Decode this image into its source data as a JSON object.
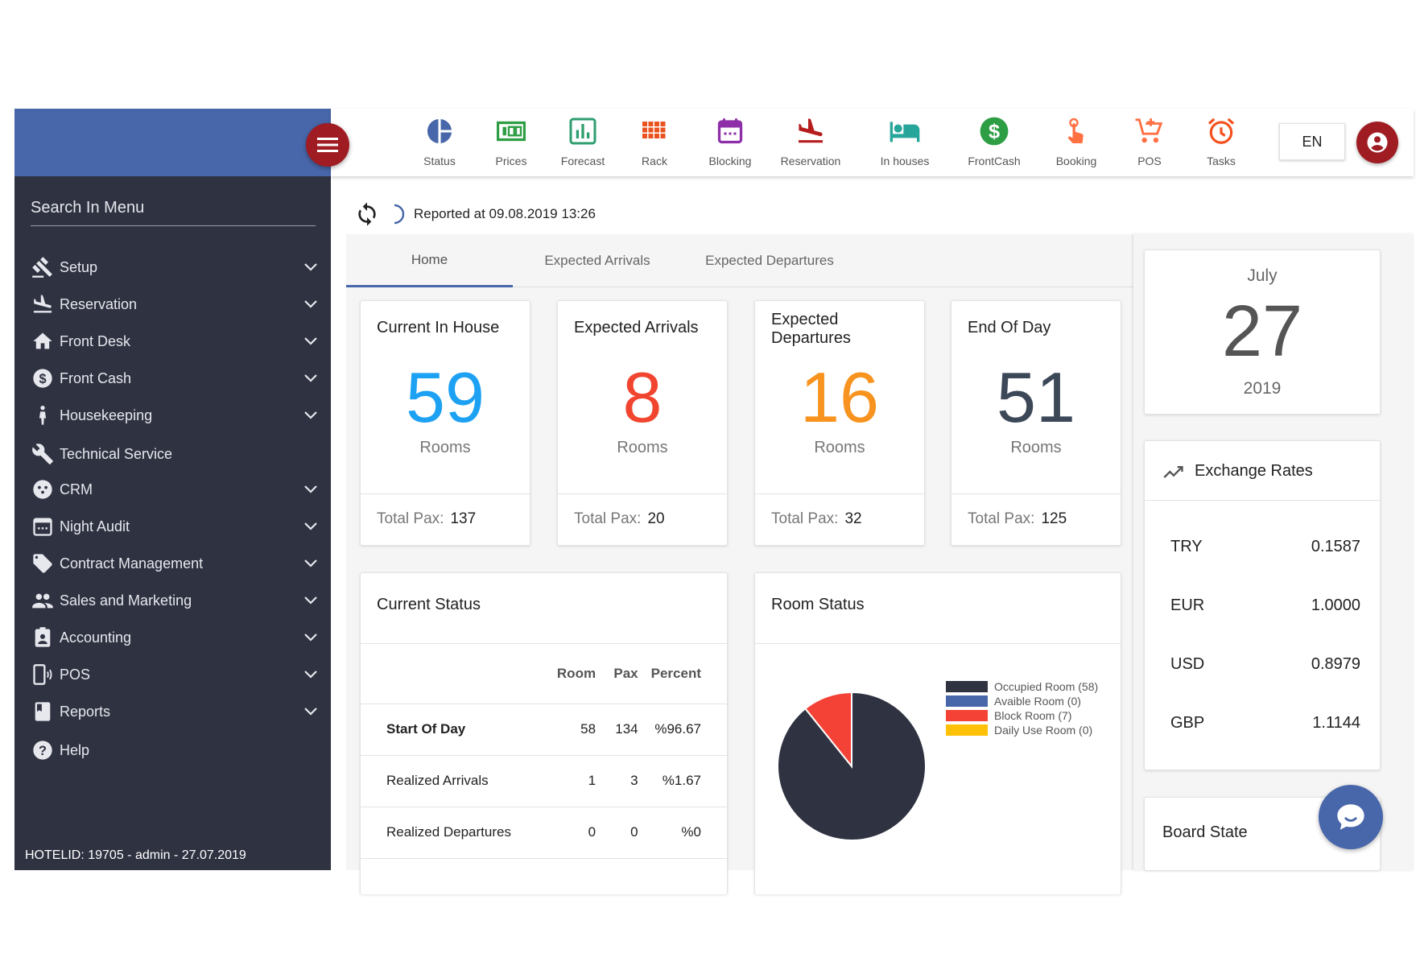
{
  "sidebar": {
    "search_placeholder": "Search In Menu",
    "items": [
      {
        "label": "Setup",
        "icon": "gavel-icon",
        "expandable": true
      },
      {
        "label": "Reservation",
        "icon": "plane-landing-icon",
        "expandable": true
      },
      {
        "label": "Front Desk",
        "icon": "home-icon",
        "expandable": true
      },
      {
        "label": "Front Cash",
        "icon": "dollar-circle-icon",
        "expandable": true
      },
      {
        "label": "Housekeeping",
        "icon": "person-icon",
        "expandable": true
      },
      {
        "label": "Technical Service",
        "icon": "wrench-icon",
        "expandable": false
      },
      {
        "label": "CRM",
        "icon": "face-icon",
        "expandable": true
      },
      {
        "label": "Night Audit",
        "icon": "calendar-icon",
        "expandable": true
      },
      {
        "label": "Contract Management",
        "icon": "tag-icon",
        "expandable": true
      },
      {
        "label": "Sales and Marketing",
        "icon": "people-icon",
        "expandable": true
      },
      {
        "label": "Accounting",
        "icon": "contact-icon",
        "expandable": true
      },
      {
        "label": "POS",
        "icon": "phone-icon",
        "expandable": true
      },
      {
        "label": "Reports",
        "icon": "book-icon",
        "expandable": true
      },
      {
        "label": "Help",
        "icon": "help-icon",
        "expandable": false
      }
    ],
    "hotel_info": "HOTELID: 19705 - admin - 27.07.2019"
  },
  "toolbar": {
    "items": [
      {
        "label": "Status",
        "icon": "pie-icon",
        "color": "#4867aa"
      },
      {
        "label": "Prices",
        "icon": "money-icon",
        "color": "#2e9e44"
      },
      {
        "label": "Forecast",
        "icon": "bar-chart-icon",
        "color": "#2e9e6f"
      },
      {
        "label": "Rack",
        "icon": "grid-icon",
        "color": "#e8531f"
      },
      {
        "label": "Blocking",
        "icon": "calendar-icon",
        "color": "#8e2ea8"
      },
      {
        "label": "Reservation",
        "icon": "plane-icon",
        "color": "#b71c1c"
      },
      {
        "label": "In houses",
        "icon": "bed-icon",
        "color": "#26a69a"
      },
      {
        "label": "FrontCash",
        "icon": "dollar-icon",
        "color": "#2e9e44"
      },
      {
        "label": "Booking",
        "icon": "touch-icon",
        "color": "#ff7043"
      },
      {
        "label": "POS",
        "icon": "cart-icon",
        "color": "#ff7043"
      },
      {
        "label": "Tasks",
        "icon": "alarm-icon",
        "color": "#f4511e"
      }
    ],
    "language": "EN"
  },
  "report": {
    "text": "Reported at 09.08.2019 13:26"
  },
  "tabs": [
    {
      "label": "Home",
      "active": true
    },
    {
      "label": "Expected Arrivals",
      "active": false
    },
    {
      "label": "Expected Departures",
      "active": false
    }
  ],
  "stats": [
    {
      "title": "Current In House",
      "value": "59",
      "unit": "Rooms",
      "pax_label": "Total Pax:",
      "pax": "137",
      "color": "#1da1f2"
    },
    {
      "title": "Expected Arrivals",
      "value": "8",
      "unit": "Rooms",
      "pax_label": "Total Pax:",
      "pax": "20",
      "color": "#f2452f"
    },
    {
      "title": "Expected Departures",
      "value": "16",
      "unit": "Rooms",
      "pax_label": "Total Pax:",
      "pax": "32",
      "color": "#f7931e"
    },
    {
      "title": "End Of Day",
      "value": "51",
      "unit": "Rooms",
      "pax_label": "Total Pax:",
      "pax": "125",
      "color": "#3c4858"
    }
  ],
  "current_status": {
    "title": "Current Status",
    "columns": [
      "Room",
      "Pax",
      "Percent"
    ],
    "rows": [
      {
        "name": "Start Of Day",
        "room": "58",
        "pax": "134",
        "percent": "%96.67"
      },
      {
        "name": "Realized Arrivals",
        "room": "1",
        "pax": "3",
        "percent": "%1.67"
      },
      {
        "name": "Realized Departures",
        "room": "0",
        "pax": "0",
        "percent": "%0"
      }
    ]
  },
  "room_status": {
    "title": "Room Status",
    "legend": [
      {
        "label": "Occupied Room (58)",
        "color": "#2f3241"
      },
      {
        "label": "Avaible Room (0)",
        "color": "#4867aa"
      },
      {
        "label": "Block Room (7)",
        "color": "#f44336"
      },
      {
        "label": "Daily Use Room (0)",
        "color": "#ffc107"
      }
    ]
  },
  "chart_data": {
    "type": "pie",
    "labels": [
      "Occupied Room",
      "Avaible Room",
      "Block Room",
      "Daily Use Room"
    ],
    "values": [
      58,
      0,
      7,
      0
    ],
    "colors": [
      "#2f3241",
      "#4867aa",
      "#f44336",
      "#ffc107"
    ],
    "legend": "right"
  },
  "date": {
    "month": "July",
    "day": "27",
    "year": "2019"
  },
  "exchange": {
    "title": "Exchange Rates",
    "rates": [
      {
        "code": "TRY",
        "value": "0.1587"
      },
      {
        "code": "EUR",
        "value": "1.0000"
      },
      {
        "code": "USD",
        "value": "0.8979"
      },
      {
        "code": "GBP",
        "value": "1.1144"
      }
    ]
  },
  "board": {
    "title": "Board State"
  }
}
